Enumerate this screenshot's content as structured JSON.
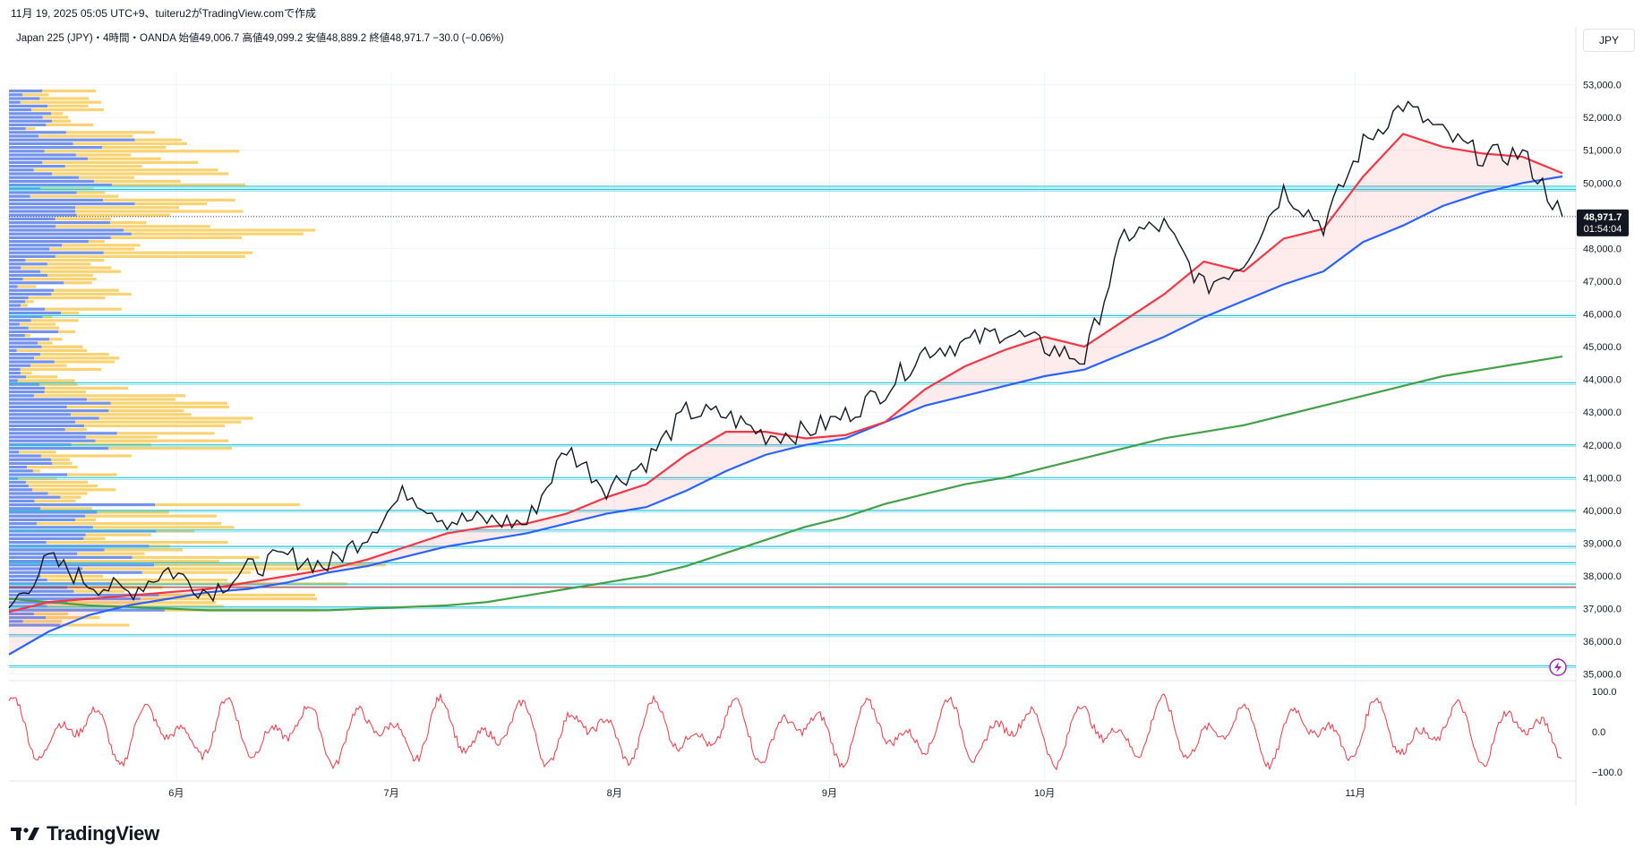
{
  "caption": "11月 19, 2025 05:05 UTC+9、tuiteru2がTradingView.comで作成",
  "symbol_line": "Japan 225 (JPY)・4時間・OANDA 始値49,006.7 高値49,099.2 安値48,889.2 終値48,971.7 −30.0 (−0.06%)",
  "currency": "JPY",
  "price_label": "48,971.7",
  "countdown_label": "01:54:04",
  "logo_text": "TradingView",
  "colors": {
    "price": "#131722",
    "ma_short": "#f23645",
    "ma_mid": "#2962ff",
    "ma_long": "#43a047",
    "hlines": "#26c6da",
    "red_line": "#c62828",
    "volume_up": "#5b7fe8",
    "volume_down": "#f7c84f",
    "oscillator": "#f23645"
  },
  "chart_data": {
    "type": "line",
    "title": "Japan 225 (JPY)・4時間・OANDA",
    "y_ticks": [
      "53,000.0",
      "52,000.0",
      "51,000.0",
      "50,000.0",
      "49,000.0",
      "48,000.0",
      "47,000.0",
      "46,000.0",
      "45,000.0",
      "44,000.0",
      "43,000.0",
      "42,000.0",
      "41,000.0",
      "40,000.0",
      "39,000.0",
      "38,000.0",
      "37,000.0",
      "36,000.0",
      "35,000.0"
    ],
    "ylim": [
      34800,
      53400
    ],
    "x_ticks": [
      "6月",
      "7月",
      "8月",
      "9月",
      "10月",
      "11月"
    ],
    "x": [
      "05-09",
      "05-15",
      "05-20",
      "05-26",
      "06-01",
      "06-07",
      "06-12",
      "06-18",
      "06-24",
      "06-30",
      "07-06",
      "07-12",
      "07-18",
      "07-24",
      "07-31",
      "08-05",
      "08-10",
      "08-15",
      "08-20",
      "08-26",
      "08-31",
      "09-05",
      "09-10",
      "09-15",
      "09-21",
      "09-27",
      "10-02",
      "10-07",
      "10-12",
      "10-16",
      "10-20",
      "10-23",
      "10-26",
      "10-29",
      "11-01",
      "11-04",
      "11-08",
      "11-12",
      "11-15",
      "11-18"
    ],
    "series": [
      {
        "name": "",
        "role": "close",
        "values": [
          37000,
          38500,
          37800,
          37500,
          38200,
          37500,
          38200,
          38600,
          38300,
          39300,
          40600,
          39700,
          39700,
          39600,
          41900,
          40700,
          41500,
          43000,
          42900,
          42300,
          42400,
          42900,
          43700,
          44900,
          45100,
          45500,
          45000,
          44600,
          48400,
          48700,
          46800,
          47600,
          49800,
          48700,
          51200,
          52400,
          51500,
          50800,
          50900,
          48971.7
        ]
      },
      {
        "name": "",
        "role": "ma_short",
        "values": [
          36900,
          37200,
          37300,
          37400,
          37500,
          37600,
          37800,
          38000,
          38200,
          38500,
          38900,
          39300,
          39500,
          39600,
          39900,
          40400,
          40800,
          41700,
          42400,
          42400,
          42200,
          42300,
          42700,
          43700,
          44400,
          44900,
          45300,
          45000,
          45800,
          46600,
          47600,
          47300,
          48300,
          48600,
          50200,
          51500,
          51100,
          50900,
          50800,
          50300
        ]
      },
      {
        "name": "",
        "role": "ma_mid",
        "values": [
          35600,
          36300,
          36800,
          37100,
          37300,
          37500,
          37600,
          37800,
          38100,
          38300,
          38600,
          38900,
          39100,
          39300,
          39600,
          39900,
          40100,
          40600,
          41200,
          41700,
          42000,
          42200,
          42700,
          43200,
          43500,
          43800,
          44100,
          44300,
          44800,
          45300,
          45900,
          46400,
          46900,
          47300,
          48200,
          48700,
          49300,
          49700,
          50000,
          50200
        ]
      },
      {
        "name": "",
        "role": "ma_long",
        "values": [
          37300,
          37200,
          37100,
          37050,
          37000,
          36950,
          36950,
          36950,
          36950,
          37000,
          37050,
          37100,
          37200,
          37400,
          37600,
          37800,
          38000,
          38300,
          38700,
          39100,
          39500,
          39800,
          40200,
          40500,
          40800,
          41000,
          41300,
          41600,
          41900,
          42200,
          42400,
          42600,
          42900,
          43200,
          43500,
          43800,
          44100,
          44300,
          44500,
          44700
        ]
      }
    ],
    "horizontal_levels": [
      49900,
      49800,
      45950,
      43900,
      42000,
      41000,
      40000,
      39400,
      38900,
      38400,
      37750,
      37050,
      36200,
      35250
    ],
    "red_level": 37650,
    "oscillator": {
      "ylim": [
        -100,
        100
      ],
      "ticks": [
        "100.0",
        "0.0",
        "−100.0"
      ]
    }
  }
}
